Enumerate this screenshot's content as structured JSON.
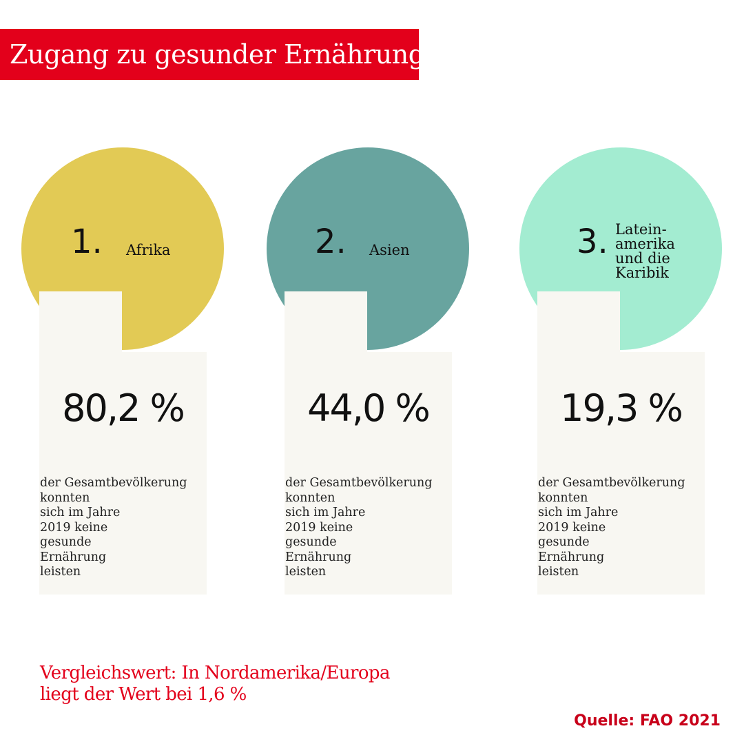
{
  "title": "Zugang zu gesunder Ernährung:",
  "chart_data": {
    "type": "table",
    "metric": "der Gesamtbevölkerung konnten sich im Jahre 2019 keine gesunde Ernährung leisten",
    "rows": [
      {
        "rank": "1.",
        "region_lines": [
          "Afrika"
        ],
        "value": 80.2,
        "value_label": "80,2 %",
        "color": "#e2ca55"
      },
      {
        "rank": "2.",
        "region_lines": [
          "Asien"
        ],
        "value": 44.0,
        "value_label": "44,0 %",
        "color": "#68a49f"
      },
      {
        "rank": "3.",
        "region_lines": [
          "Latein-",
          "amerika",
          "und die",
          "Karibik"
        ],
        "value": 19.3,
        "value_label": "19,3 %",
        "color": "#a3ecd1"
      }
    ]
  },
  "description_lines": [
    "der Gesamtbevölkerung",
    "konnten",
    "sich im Jahre",
    "2019 keine",
    "gesunde",
    "Ernährung",
    "leisten"
  ],
  "footnote_lines": [
    "Vergleichswert: In Nordamerika/Europa",
    "liegt der Wert bei 1,6 %"
  ],
  "source": "Quelle: FAO 2021",
  "colors": {
    "accent": "#e3001b",
    "panel": "#f8f7f2"
  }
}
